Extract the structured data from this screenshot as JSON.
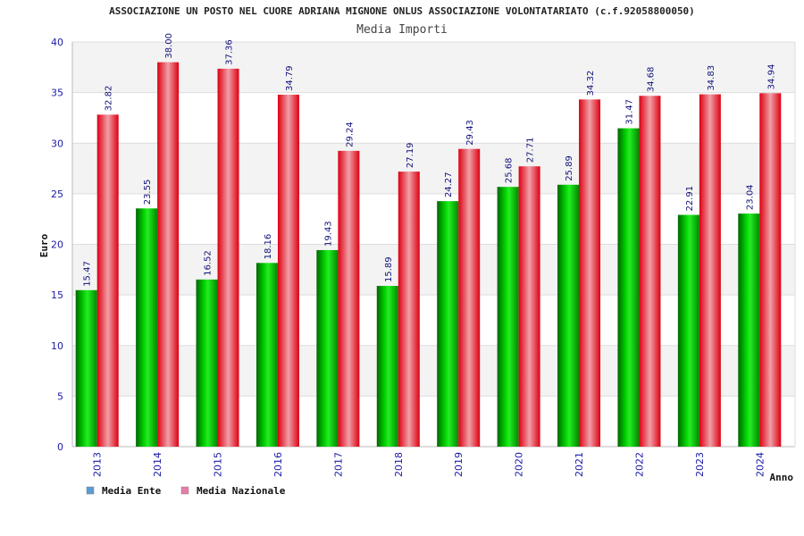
{
  "chart_data": {
    "type": "bar",
    "title": "ASSOCIAZIONE UN POSTO NEL CUORE ADRIANA MIGNONE ONLUS ASSOCIAZIONE VOLONTATARIATO (c.f.92058800050)",
    "subtitle": "Media Importi",
    "xlabel": "Anno",
    "ylabel": "Euro",
    "ylim": [
      0,
      40
    ],
    "yticks": [
      0,
      5,
      10,
      15,
      20,
      25,
      30,
      35,
      40
    ],
    "grid": true,
    "legend_position": "bottom-left",
    "categories": [
      "2013",
      "2014",
      "2015",
      "2016",
      "2017",
      "2018",
      "2019",
      "2020",
      "2021",
      "2022",
      "2023",
      "2024"
    ],
    "series": [
      {
        "name": "Media Ente",
        "color": "#00aa00",
        "legend_color": "#5b9bd5",
        "values": [
          15.47,
          23.55,
          16.52,
          18.16,
          19.43,
          15.89,
          24.27,
          25.68,
          25.89,
          31.47,
          22.91,
          23.04
        ],
        "labels": [
          "15.47",
          "23.55",
          "16.52",
          "18.16",
          "19.43",
          "15.89",
          "24.27",
          "25.68",
          "25.89",
          "31.47",
          "22.91",
          "23.04"
        ]
      },
      {
        "name": "Media Nazionale",
        "color": "#ee0011",
        "legend_color": "#e87ca8",
        "values": [
          32.82,
          38.0,
          37.36,
          34.79,
          29.24,
          27.19,
          29.43,
          27.71,
          34.32,
          34.68,
          34.83,
          34.94
        ],
        "labels": [
          "32.82",
          "38.00",
          "37.36",
          "34.79",
          "29.24",
          "27.19",
          "29.43",
          "27.71",
          "34.32",
          "34.68",
          "34.83",
          "34.94"
        ]
      }
    ]
  }
}
